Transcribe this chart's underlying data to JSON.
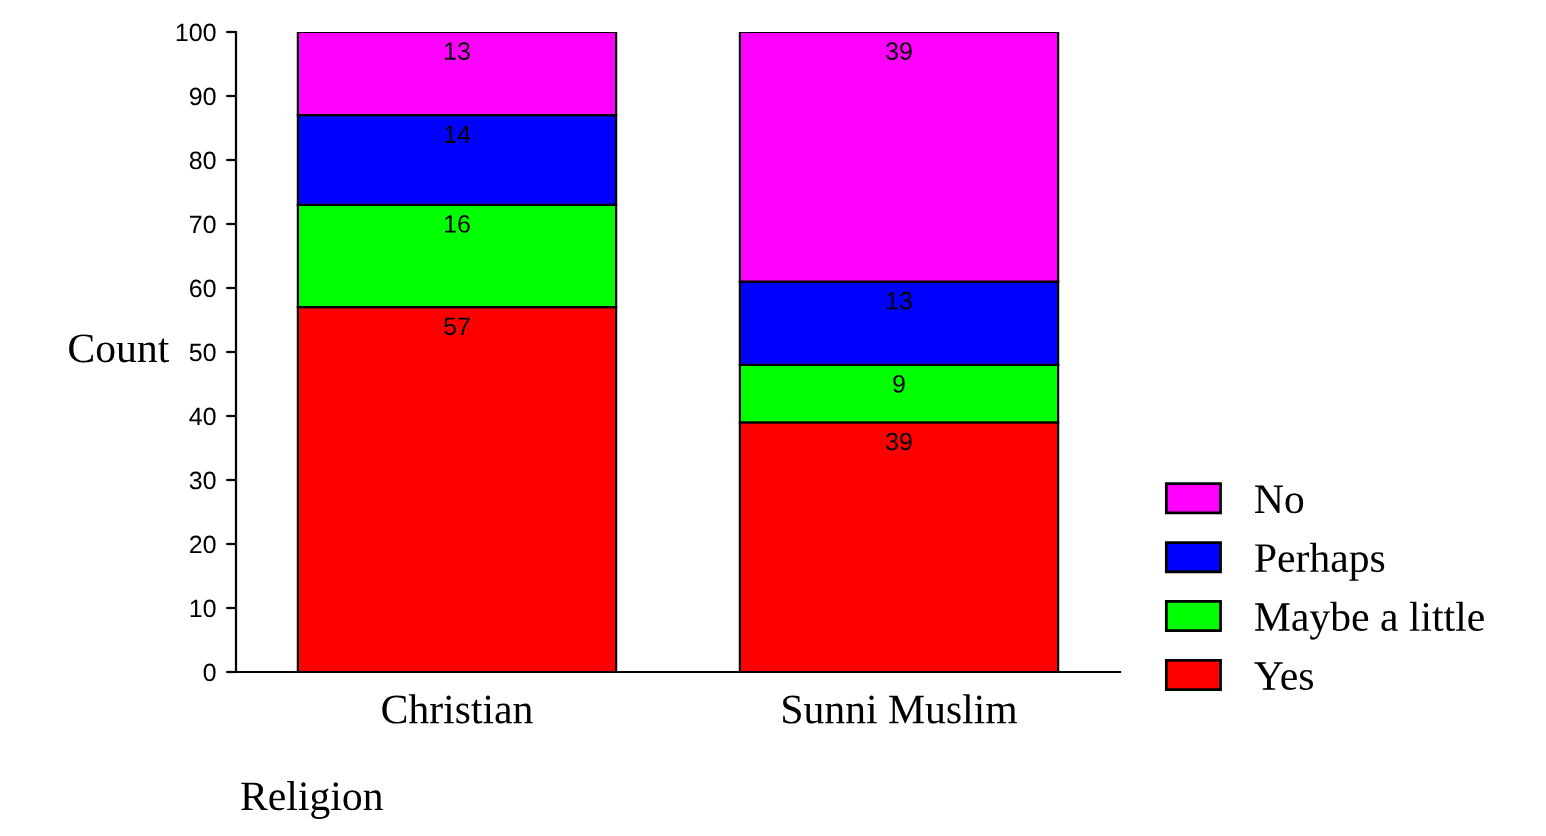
{
  "chart_data": {
    "type": "bar",
    "stacked": true,
    "xlabel": "Religion",
    "ylabel": "Count",
    "categories": [
      "Christian",
      "Sunni Muslim"
    ],
    "series": [
      {
        "name": "Yes",
        "color": "#ff0000",
        "values": [
          57,
          39
        ]
      },
      {
        "name": "Maybe a little",
        "color": "#00ff00",
        "values": [
          16,
          9
        ]
      },
      {
        "name": "Perhaps",
        "color": "#0000ff",
        "values": [
          14,
          13
        ]
      },
      {
        "name": "No",
        "color": "#ff00ff",
        "values": [
          13,
          39
        ]
      }
    ],
    "ylim": [
      0,
      100
    ],
    "yticks": [
      0,
      10,
      20,
      30,
      40,
      50,
      60,
      70,
      80,
      90,
      100
    ],
    "data_labels": true,
    "legend": "bottom right",
    "grid": false
  }
}
